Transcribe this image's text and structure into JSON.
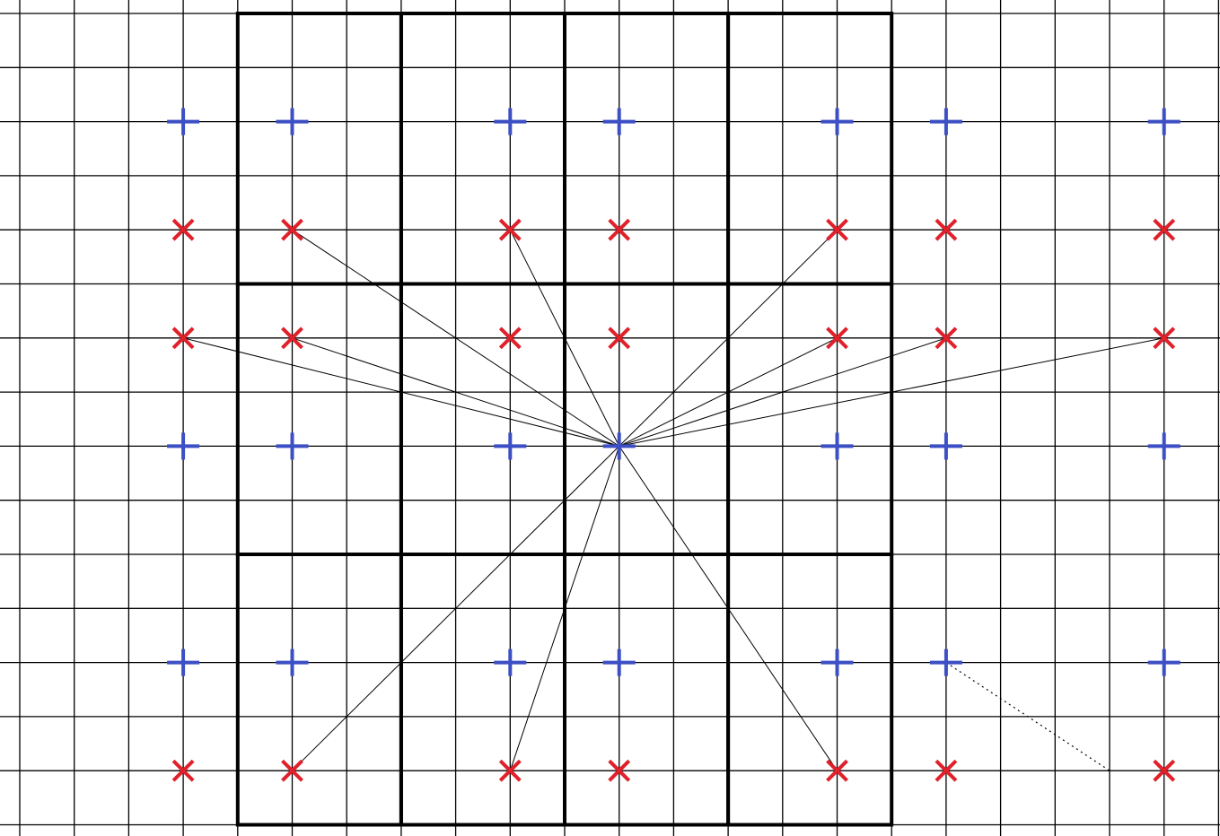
{
  "diagram": {
    "title": "",
    "grid": {
      "columns": 23,
      "rows": 16,
      "cell_units": 1
    },
    "colors": {
      "background": "#ffffff",
      "grid": "#000000",
      "plus_marker": "#3c4fc4",
      "cross_marker": "#e0202a",
      "connection": "#000000"
    },
    "markers": {
      "plus": [
        [
          3,
          2
        ],
        [
          5,
          2
        ],
        [
          9,
          2
        ],
        [
          11,
          2
        ],
        [
          15,
          2
        ],
        [
          17,
          2
        ],
        [
          21,
          2
        ],
        [
          3,
          8
        ],
        [
          5,
          8
        ],
        [
          9,
          8
        ],
        [
          11,
          8
        ],
        [
          15,
          8
        ],
        [
          17,
          8
        ],
        [
          21,
          8
        ],
        [
          3,
          12
        ],
        [
          5,
          12
        ],
        [
          9,
          12
        ],
        [
          11,
          12
        ],
        [
          15,
          12
        ],
        [
          17,
          12
        ],
        [
          21,
          12
        ]
      ],
      "cross": [
        [
          3,
          4
        ],
        [
          5,
          4
        ],
        [
          9,
          4
        ],
        [
          11,
          4
        ],
        [
          15,
          4
        ],
        [
          17,
          4
        ],
        [
          21,
          4
        ],
        [
          3,
          6
        ],
        [
          5,
          6
        ],
        [
          9,
          6
        ],
        [
          11,
          6
        ],
        [
          15,
          6
        ],
        [
          17,
          6
        ],
        [
          21,
          6
        ],
        [
          3,
          14
        ],
        [
          5,
          14
        ],
        [
          9,
          14
        ],
        [
          11,
          14
        ],
        [
          15,
          14
        ],
        [
          17,
          14
        ],
        [
          21,
          14
        ]
      ]
    },
    "hub": [
      11,
      8
    ],
    "connections": [
      [
        5,
        4
      ],
      [
        9,
        4
      ],
      [
        15,
        4
      ],
      [
        3,
        6
      ],
      [
        5,
        6
      ],
      [
        11,
        6
      ],
      [
        15,
        6
      ],
      [
        17,
        6
      ],
      [
        21,
        6
      ],
      [
        5,
        14
      ],
      [
        9,
        14
      ],
      [
        15,
        14
      ]
    ],
    "dotted_connections": [
      [
        [
          17,
          12
        ],
        [
          20,
          14
        ]
      ]
    ],
    "blocks": [
      [
        4,
        0,
        7,
        5
      ],
      [
        7,
        0,
        10,
        5
      ],
      [
        10,
        0,
        13,
        5
      ],
      [
        13,
        0,
        16,
        5
      ],
      [
        4,
        5,
        7,
        10
      ],
      [
        7,
        5,
        10,
        10
      ],
      [
        10,
        5,
        13,
        10
      ],
      [
        13,
        5,
        16,
        10
      ],
      [
        4,
        10,
        7,
        15
      ],
      [
        7,
        10,
        10,
        15
      ],
      [
        10,
        10,
        13,
        15
      ],
      [
        13,
        10,
        16,
        15
      ]
    ]
  }
}
